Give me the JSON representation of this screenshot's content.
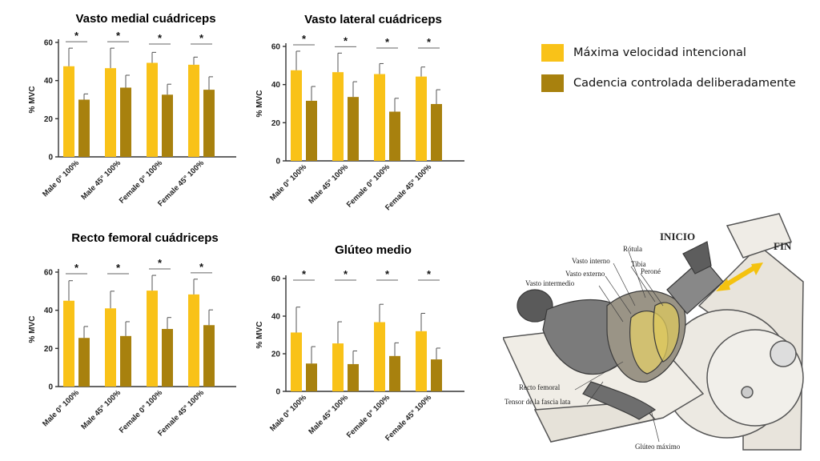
{
  "colors": {
    "fast": "#F9C218",
    "slow": "#A8810E"
  },
  "legend": {
    "fast_label": "Máxima velocidad intencional",
    "slow_label": "Cadencia controlada deliberadamente"
  },
  "chart_data": [
    {
      "type": "bar",
      "title": "Vasto medial cuádriceps",
      "ylabel": "% MVC",
      "ylim": [
        0,
        60
      ],
      "yticks": [
        "0",
        "20",
        "40",
        "60"
      ],
      "categories": [
        "Male 0° 100%",
        "Male 45° 100%",
        "Female 0° 100%",
        "Female 45° 100%"
      ],
      "series": [
        {
          "name": "Máxima velocidad intencional",
          "values": [
            47.5,
            46.5,
            49.3,
            48.3
          ],
          "errors": [
            9.5,
            10.5,
            5.5,
            4.0
          ]
        },
        {
          "name": "Cadencia controlada deliberadamente",
          "values": [
            30.0,
            36.3,
            32.6,
            35.2
          ],
          "errors": [
            3.0,
            6.5,
            5.5,
            6.8
          ]
        }
      ],
      "significance": [
        "*",
        "*",
        "*",
        "*"
      ]
    },
    {
      "type": "bar",
      "title": "Vasto lateral cuádriceps",
      "ylabel": "% MVC",
      "ylim": [
        0,
        60
      ],
      "yticks": [
        "0",
        "20",
        "40",
        "60"
      ],
      "categories": [
        "Male 0° 100%",
        "Male 45° 100%",
        "Female 0° 100%",
        "Female 45° 100%"
      ],
      "series": [
        {
          "name": "Máxima velocidad intencional",
          "values": [
            47.5,
            46.5,
            45.5,
            44.2
          ],
          "errors": [
            10.0,
            10.0,
            5.5,
            5.0
          ]
        },
        {
          "name": "Cadencia controlada deliberadamente",
          "values": [
            31.5,
            33.5,
            25.8,
            29.8
          ],
          "errors": [
            7.5,
            8.0,
            7.0,
            7.5
          ]
        }
      ],
      "significance": [
        "*",
        "*",
        "*",
        "*"
      ]
    },
    {
      "type": "bar",
      "title": "Recto femoral cuádriceps",
      "ylabel": "% MVC",
      "ylim": [
        0,
        60
      ],
      "yticks": [
        "0",
        "20",
        "40",
        "60"
      ],
      "categories": [
        "Male 0° 100%",
        "Male 45° 100%",
        "Female 0° 100%",
        "Female 45° 100%"
      ],
      "series": [
        {
          "name": "Máxima velocidad intencional",
          "values": [
            45.0,
            41.0,
            50.3,
            48.3
          ],
          "errors": [
            10.5,
            9.0,
            8.0,
            8.0
          ]
        },
        {
          "name": "Cadencia controlada deliberadamente",
          "values": [
            25.5,
            26.5,
            30.2,
            32.2
          ],
          "errors": [
            6.0,
            7.5,
            6.0,
            8.0
          ]
        }
      ],
      "significance": [
        "*",
        "*",
        "*",
        "*"
      ]
    },
    {
      "type": "bar",
      "title": "Glúteo medio",
      "ylabel": "% MVC",
      "ylim": [
        0,
        60
      ],
      "yticks": [
        "0",
        "20",
        "40",
        "60"
      ],
      "categories": [
        "Male 0° 100%",
        "Male 45° 100%",
        "Female 0° 100%",
        "Female 45° 100%"
      ],
      "series": [
        {
          "name": "Máxima velocidad intencional",
          "values": [
            31.3,
            25.5,
            36.8,
            32.0
          ],
          "errors": [
            13.5,
            11.5,
            9.5,
            9.5
          ]
        },
        {
          "name": "Cadencia controlada deliberadamente",
          "values": [
            14.8,
            14.5,
            18.8,
            17.0
          ],
          "errors": [
            9.0,
            7.0,
            7.0,
            6.0
          ]
        }
      ],
      "significance": [
        "*",
        "*",
        "*",
        "*"
      ]
    }
  ],
  "illustration": {
    "inicio": "INICIO",
    "fin": "FIN",
    "labels": [
      "Rótula",
      "Vasto interno",
      "Tibia",
      "Vasto externo",
      "Peroné",
      "Vasto intermedio",
      "Recto femoral",
      "Tensor de la fascia lata",
      "Glúteo máximo"
    ]
  }
}
